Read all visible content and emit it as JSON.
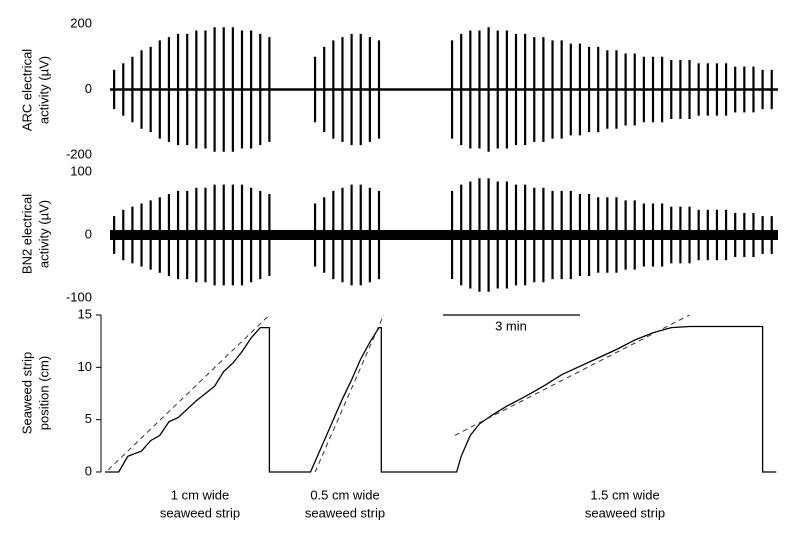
{
  "chart_data": [
    {
      "type": "bursts",
      "ylabel": [
        "ARC electrical",
        "activity (µV)"
      ],
      "ylim": [
        -200,
        200
      ],
      "yticks": [
        -200,
        0,
        200
      ],
      "xlim": [
        0,
        15
      ],
      "color": "#000000",
      "x": [
        0.2,
        0.4,
        0.6,
        0.8,
        1.0,
        1.2,
        1.4,
        1.6,
        1.8,
        2.0,
        2.2,
        2.4,
        2.6,
        2.8,
        3.0,
        3.2,
        3.4,
        3.6,
        4.6,
        4.8,
        5.0,
        5.2,
        5.4,
        5.6,
        5.8,
        6.0,
        7.6,
        7.8,
        8.0,
        8.2,
        8.4,
        8.6,
        8.8,
        9.0,
        9.2,
        9.4,
        9.6,
        9.8,
        10.0,
        10.2,
        10.4,
        10.6,
        10.8,
        11.0,
        11.2,
        11.4,
        11.6,
        11.8,
        12.0,
        12.2,
        12.4,
        12.6,
        12.8,
        13.0,
        13.2,
        13.4,
        13.6,
        13.8,
        14.0,
        14.2,
        14.4,
        14.6
      ],
      "values": [
        60,
        80,
        100,
        120,
        130,
        150,
        160,
        170,
        170,
        180,
        180,
        190,
        190,
        190,
        180,
        180,
        170,
        160,
        100,
        130,
        150,
        160,
        170,
        170,
        160,
        150,
        150,
        170,
        180,
        180,
        190,
        180,
        180,
        170,
        170,
        160,
        160,
        150,
        150,
        140,
        140,
        130,
        130,
        120,
        120,
        110,
        110,
        100,
        100,
        100,
        90,
        90,
        90,
        80,
        80,
        80,
        80,
        70,
        70,
        70,
        60,
        60
      ]
    },
    {
      "type": "bursts",
      "ylabel": [
        "BN2 electrical",
        "activity (µV)"
      ],
      "ylim": [
        -100,
        100
      ],
      "yticks": [
        -100,
        0,
        100
      ],
      "xlim": [
        0,
        15
      ],
      "color": "#000000",
      "x": [
        0.2,
        0.4,
        0.6,
        0.8,
        1.0,
        1.2,
        1.4,
        1.6,
        1.8,
        2.0,
        2.2,
        2.4,
        2.6,
        2.8,
        3.0,
        3.2,
        3.4,
        3.6,
        4.6,
        4.8,
        5.0,
        5.2,
        5.4,
        5.6,
        5.8,
        6.0,
        7.6,
        7.8,
        8.0,
        8.2,
        8.4,
        8.6,
        8.8,
        9.0,
        9.2,
        9.4,
        9.6,
        9.8,
        10.0,
        10.2,
        10.4,
        10.6,
        10.8,
        11.0,
        11.2,
        11.4,
        11.6,
        11.8,
        12.0,
        12.2,
        12.4,
        12.6,
        12.8,
        13.0,
        13.2,
        13.4,
        13.6,
        13.8,
        14.0,
        14.2,
        14.4,
        14.6
      ],
      "values": [
        30,
        40,
        45,
        50,
        55,
        60,
        65,
        70,
        70,
        75,
        75,
        80,
        80,
        80,
        80,
        75,
        70,
        65,
        50,
        60,
        70,
        75,
        80,
        80,
        75,
        70,
        70,
        80,
        85,
        90,
        90,
        85,
        85,
        80,
        80,
        75,
        75,
        70,
        70,
        70,
        65,
        65,
        60,
        60,
        60,
        55,
        55,
        50,
        50,
        50,
        45,
        45,
        45,
        40,
        40,
        40,
        40,
        35,
        35,
        35,
        30,
        30
      ]
    },
    {
      "type": "line",
      "ylabel": [
        "Seaweed strip",
        "position (cm)"
      ],
      "ylim": [
        0,
        15
      ],
      "yticks": [
        0,
        5,
        10,
        15
      ],
      "xlim": [
        0,
        15
      ],
      "color": "#000000",
      "scalebar": {
        "value": 3,
        "label": "3 min"
      },
      "series": [
        {
          "x": [
            0,
            0.3,
            0.5,
            0.8,
            1.0,
            1.2,
            1.4,
            1.6,
            1.8,
            2.0,
            2.2,
            2.4,
            2.6,
            2.8,
            3.0,
            3.2,
            3.4,
            3.6,
            3.6,
            4.5,
            4.6,
            4.8,
            5.0,
            5.2,
            5.4,
            5.6,
            5.8,
            6.0,
            6.05,
            6.05,
            7.7,
            7.8,
            8.0,
            8.2,
            8.5,
            8.8,
            9.2,
            9.6,
            10.0,
            10.4,
            10.8,
            11.2,
            11.6,
            12.0,
            12.4,
            12.8,
            14.4,
            14.4,
            14.7
          ],
          "values": [
            0,
            0,
            1.5,
            2,
            3,
            3.5,
            4.8,
            5.2,
            6,
            6.8,
            7.5,
            8.2,
            9.6,
            10.4,
            11.5,
            12.8,
            13.8,
            13.8,
            0,
            0,
            1,
            3,
            5,
            7,
            8.8,
            10.8,
            12.4,
            13.8,
            13.8,
            0,
            0,
            1.5,
            3.5,
            4.6,
            5.5,
            6.3,
            7.2,
            8.2,
            9.3,
            10.1,
            10.9,
            11.7,
            12.6,
            13.3,
            13.8,
            13.9,
            13.9,
            0,
            0
          ]
        }
      ],
      "fits": [
        {
          "x": [
            0.07,
            3.6
          ],
          "values": [
            0.2,
            15
          ]
        },
        {
          "x": [
            4.6,
            6.1
          ],
          "values": [
            0,
            15
          ]
        },
        {
          "x": [
            7.66,
            12.8
          ],
          "values": [
            3.5,
            15
          ]
        }
      ],
      "annotations": [
        [
          "1 cm wide",
          "seaweed strip"
        ],
        [
          "0.5 cm wide",
          "seaweed strip"
        ],
        [
          "1.5 cm wide",
          "seaweed strip"
        ]
      ]
    }
  ]
}
